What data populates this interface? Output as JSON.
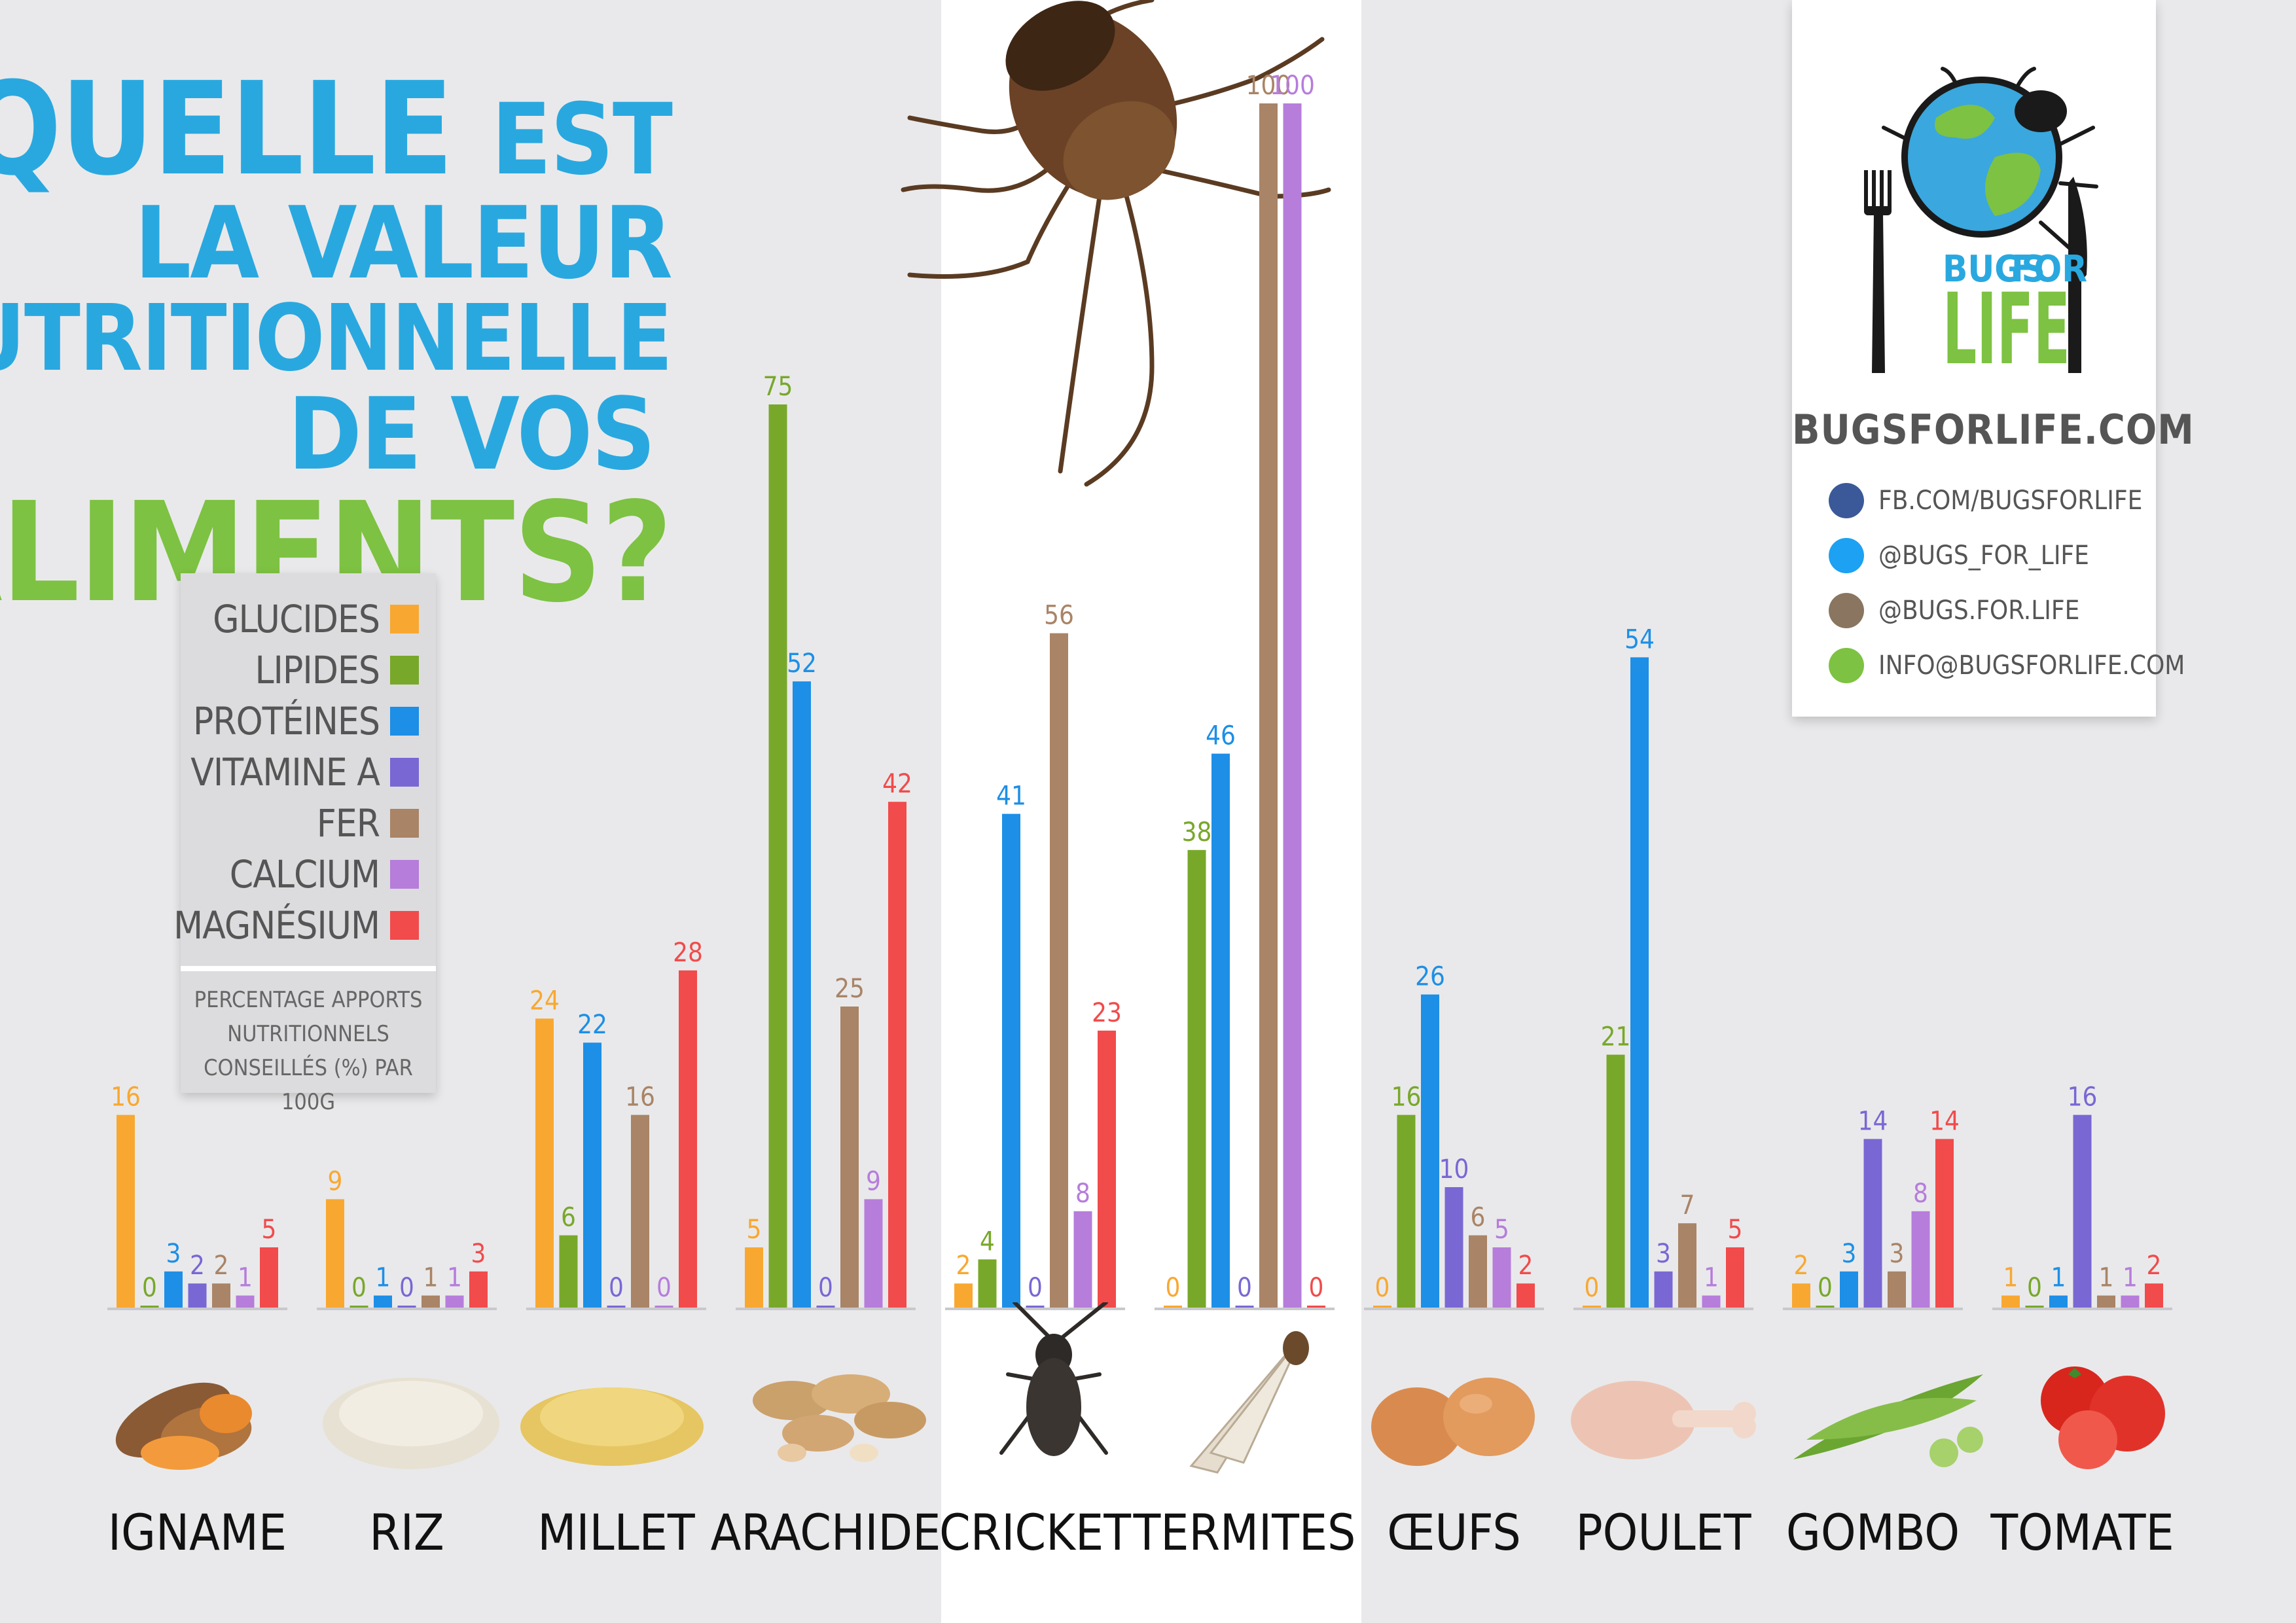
{
  "title": {
    "line1_a": "QUELLE",
    "line1_b": "EST",
    "line2": "LA VALEUR",
    "line3": "NUTRITIONNELLE",
    "line4": "DE VOS",
    "line5": "ALIMENTS?"
  },
  "legend": {
    "items": [
      {
        "label": "GLUCIDES",
        "color": "#f8a831"
      },
      {
        "label": "LIPIDES",
        "color": "#78a82a"
      },
      {
        "label": "PROTÉINES",
        "color": "#1d8fe6"
      },
      {
        "label": "VITAMINE A",
        "color": "#7967d4"
      },
      {
        "label": "FER",
        "color": "#a98466"
      },
      {
        "label": "CALCIUM",
        "color": "#b67ddb"
      },
      {
        "label": "MAGNÉSIUM",
        "color": "#f14b4b"
      }
    ],
    "note": "PERCENTAGE APPORTS NUTRITIONNELS CONSEILLÉS (%) PAR 100G"
  },
  "chart_data": {
    "type": "bar",
    "categories": [
      "IGNAME",
      "RIZ",
      "MILLET",
      "ARACHIDE",
      "CRICKET",
      "TERMITES",
      "ŒUFS",
      "POULET",
      "GOMBO",
      "TOMATE"
    ],
    "series": [
      {
        "name": "GLUCIDES",
        "color": "#f8a831",
        "values": [
          16,
          9,
          24,
          5,
          2,
          0,
          0,
          0,
          2,
          1
        ]
      },
      {
        "name": "LIPIDES",
        "color": "#78a82a",
        "values": [
          0,
          0,
          6,
          75,
          4,
          38,
          16,
          21,
          0,
          0
        ]
      },
      {
        "name": "PROTÉINES",
        "color": "#1d8fe6",
        "values": [
          3,
          1,
          22,
          52,
          41,
          46,
          26,
          54,
          3,
          1
        ]
      },
      {
        "name": "VITAMINE A",
        "color": "#7967d4",
        "values": [
          2,
          0,
          0,
          0,
          0,
          0,
          10,
          3,
          14,
          16
        ]
      },
      {
        "name": "FER",
        "color": "#a98466",
        "values": [
          2,
          1,
          16,
          25,
          56,
          100,
          6,
          7,
          3,
          1
        ]
      },
      {
        "name": "CALCIUM",
        "color": "#b67ddb",
        "values": [
          1,
          1,
          0,
          9,
          8,
          100,
          5,
          1,
          8,
          1
        ]
      },
      {
        "name": "MAGNÉSIUM",
        "color": "#f14b4b",
        "values": [
          5,
          3,
          28,
          42,
          23,
          0,
          2,
          5,
          14,
          2
        ]
      }
    ],
    "ylim": [
      0,
      100
    ],
    "highlighted_categories": [
      "CRICKET",
      "TERMITES"
    ]
  },
  "foods": [
    {
      "name": "yam-icon"
    },
    {
      "name": "rice-icon"
    },
    {
      "name": "millet-icon"
    },
    {
      "name": "peanut-icon"
    },
    {
      "name": "cricket-icon"
    },
    {
      "name": "termite-icon"
    },
    {
      "name": "eggs-icon"
    },
    {
      "name": "chicken-leg-icon"
    },
    {
      "name": "okra-icon"
    },
    {
      "name": "tomato-icon"
    }
  ],
  "brand": {
    "logo_word1": "BUGS",
    "logo_word2": "FOR",
    "logo_word3": "LIFE",
    "url": "BUGSFORLIFE.COM",
    "social": [
      {
        "icon": "facebook-icon",
        "text": "FB.COM/BUGSFORLIFE",
        "color": "#3b5998"
      },
      {
        "icon": "twitter-icon",
        "text": "@BUGS_FOR_LIFE",
        "color": "#1da1f2"
      },
      {
        "icon": "instagram-icon",
        "text": "@BUGS.FOR.LIFE",
        "color": "#8a7560"
      },
      {
        "icon": "email-icon",
        "text": "INFO@BUGSFORLIFE.COM",
        "color": "#7dc242"
      }
    ]
  }
}
